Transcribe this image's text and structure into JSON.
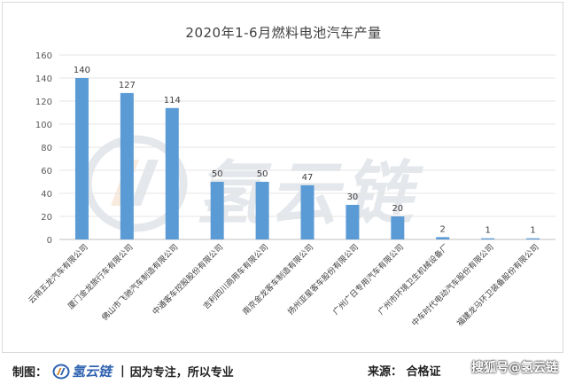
{
  "chart_data": {
    "type": "bar",
    "title": "2020年1-6月燃料电池汽车产量",
    "categories": [
      "云南五龙汽车有限公司",
      "厦门金龙旅行车有限公司",
      "佛山市飞驰汽车制造有限公司",
      "中通客车控股股份有限公司",
      "吉利四川商用车有限公司",
      "南京金龙客车制造有限公司",
      "扬州亚星客车股份有限公司",
      "广州广日专用汽车有限公司",
      "广州市环境卫生机械设备厂",
      "中车时代电动汽车股份有限公司",
      "福建龙马环卫装备股份有限公司"
    ],
    "values": [
      140,
      127,
      114,
      50,
      50,
      47,
      30,
      20,
      2,
      1,
      1
    ],
    "ylim": [
      0,
      160
    ],
    "yticks": [
      0,
      20,
      40,
      60,
      80,
      100,
      120,
      140,
      160
    ],
    "grid": true,
    "bar_color": "#5b9bd5"
  },
  "watermark": {
    "text": "氢云链"
  },
  "footer": {
    "left_label": "制图：",
    "brand": "氢云链",
    "separator": "|",
    "slogan": "因为专注，所以专业",
    "source_label": "来源：",
    "source_value": "合格证",
    "overlay": "搜狐号@氢云链"
  }
}
